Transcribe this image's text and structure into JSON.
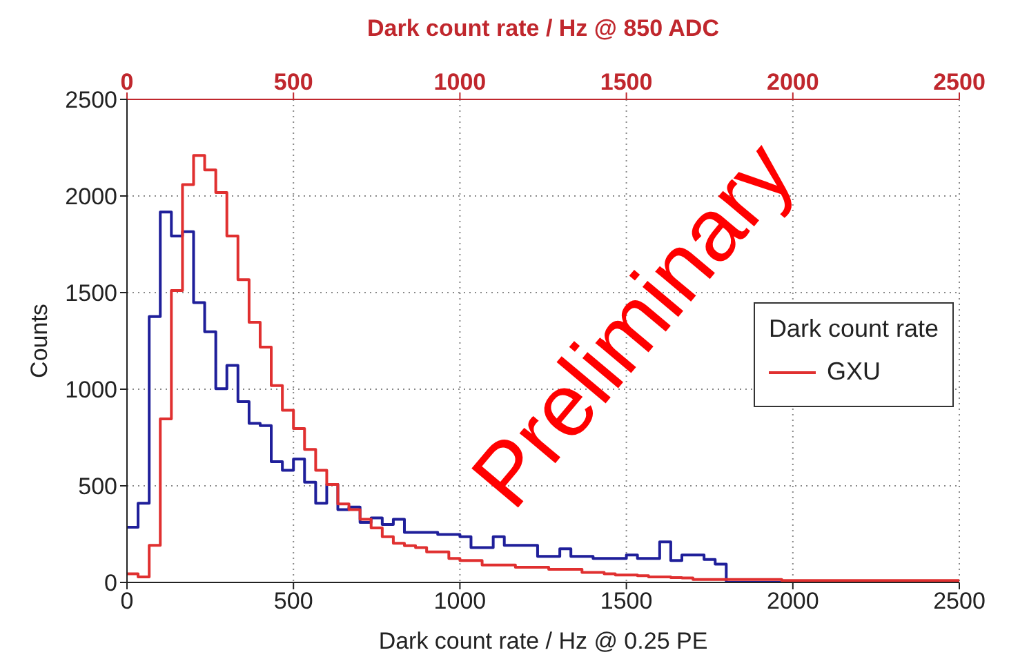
{
  "chart_data": {
    "type": "histogram",
    "xlabel": "Dark count rate / Hz @ 0.25 PE",
    "ylabel": "Counts",
    "x2label": "Dark count rate / Hz @  850 ADC",
    "legend_title": "Dark count rate",
    "bins": [
      0,
      33.3,
      66.7,
      100,
      133.3,
      166.7,
      200,
      233.3,
      266.7,
      300,
      333.3,
      366.7,
      400,
      433.3,
      466.7,
      500,
      533.3,
      566.7,
      600,
      633.3,
      666.7,
      700,
      733.3,
      766.7,
      800,
      833.3,
      866.7,
      900,
      933.3,
      966.7,
      1000,
      1033.3,
      1066.7,
      1100,
      1133.3,
      1166.7,
      1200,
      1233.3,
      1266.7,
      1300,
      1333.3,
      1366.7,
      1400,
      1433.3,
      1466.7,
      1500,
      1533.3,
      1566.7,
      1600,
      1633.3,
      1666.7,
      1700,
      1733.3,
      1766.7,
      1800,
      1833.3,
      1866.7,
      1900,
      1933.3,
      1966.7,
      2000,
      2033.3,
      2066.7,
      2100,
      2133.3,
      2166.7,
      2200,
      2233.3,
      2266.7,
      2300,
      2333.3,
      2366.7,
      2400,
      2433.3,
      2466.7,
      2500
    ],
    "series": [
      {
        "color": "#1f1f9a",
        "values": [
          286,
          410,
          1376,
          1917,
          1793,
          1815,
          1448,
          1297,
          1003,
          1123,
          936,
          823,
          812,
          625,
          580,
          638,
          519,
          410,
          507,
          377,
          390,
          311,
          334,
          300,
          327,
          259,
          259,
          259,
          248,
          248,
          237,
          180,
          180,
          237,
          192,
          192,
          192,
          135,
          135,
          174,
          135,
          135,
          124,
          124,
          124,
          142,
          124,
          124,
          210,
          113,
          142,
          142,
          119,
          95,
          0,
          0,
          0,
          0,
          0,
          0,
          0,
          0,
          0,
          0,
          0,
          0,
          0,
          0,
          0,
          0,
          0,
          0,
          0,
          0,
          0
        ]
      },
      {
        "name": "GXU",
        "color": "#e03030",
        "values": [
          45,
          29,
          192,
          846,
          1511,
          2059,
          2210,
          2135,
          2018,
          1793,
          1567,
          1346,
          1218,
          1019,
          891,
          796,
          688,
          580,
          507,
          406,
          377,
          327,
          282,
          237,
          203,
          190,
          180,
          158,
          158,
          124,
          113,
          113,
          90,
          90,
          90,
          79,
          79,
          79,
          68,
          68,
          68,
          52,
          52,
          45,
          38,
          38,
          35,
          29,
          29,
          25,
          23,
          15,
          15,
          15,
          15,
          15,
          15,
          15,
          15,
          10,
          10,
          10,
          10,
          10,
          10,
          10,
          10,
          10,
          10,
          10,
          10,
          10,
          10,
          10,
          10
        ]
      }
    ],
    "xlim": [
      0,
      2500
    ],
    "xticks": [
      0,
      500,
      1000,
      1500,
      2000,
      2500
    ],
    "x2lim": [
      0,
      2500
    ],
    "x2ticks": [
      0,
      500,
      1000,
      1500,
      2000,
      2500
    ],
    "ylim": [
      0,
      2500
    ],
    "yticks": [
      0,
      500,
      1000,
      1500,
      2000,
      2500
    ],
    "grid": true,
    "legend": "right",
    "annotations": [
      "Preliminary"
    ]
  }
}
